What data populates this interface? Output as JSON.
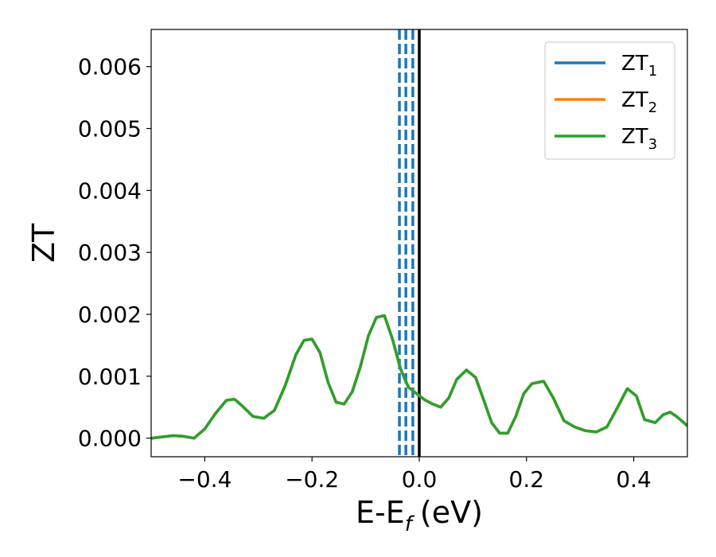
{
  "chart_data": {
    "type": "line",
    "xlabel": "E-E",
    "xlabel_sub": "f",
    "xlabel_unit": "(eV)",
    "ylabel": "ZT",
    "xlim": [
      -0.5,
      0.5
    ],
    "ylim": [
      -0.0003,
      0.0066
    ],
    "xticks": [
      -0.4,
      -0.2,
      0.0,
      0.2,
      0.4
    ],
    "xtick_labels": [
      "−0.4",
      "−0.2",
      "0.0",
      "0.2",
      "0.4"
    ],
    "yticks": [
      0.0,
      0.001,
      0.002,
      0.003,
      0.004,
      0.005,
      0.006
    ],
    "ytick_labels": [
      "0.000",
      "0.001",
      "0.002",
      "0.003",
      "0.004",
      "0.005",
      "0.006"
    ],
    "grid": false,
    "legend_position": "top-right",
    "series": [
      {
        "name": "ZT",
        "name_sub": "1",
        "color": "#1f77b4"
      },
      {
        "name": "ZT",
        "name_sub": "2",
        "color": "#ff7f0e"
      },
      {
        "name": "ZT",
        "name_sub": "3",
        "color": "#2ca02c",
        "x": [
          -0.5,
          -0.48,
          -0.46,
          -0.44,
          -0.42,
          -0.4,
          -0.38,
          -0.36,
          -0.345,
          -0.33,
          -0.31,
          -0.29,
          -0.27,
          -0.25,
          -0.23,
          -0.215,
          -0.2,
          -0.185,
          -0.17,
          -0.155,
          -0.14,
          -0.125,
          -0.11,
          -0.095,
          -0.08,
          -0.065,
          -0.05,
          -0.035,
          -0.02,
          -0.005,
          0.01,
          0.025,
          0.04,
          0.055,
          0.07,
          0.088,
          0.105,
          0.12,
          0.135,
          0.15,
          0.165,
          0.18,
          0.195,
          0.21,
          0.232,
          0.25,
          0.27,
          0.29,
          0.31,
          0.33,
          0.35,
          0.37,
          0.388,
          0.405,
          0.42,
          0.44,
          0.455,
          0.468,
          0.48,
          0.5
        ],
        "y": [
          0.0,
          2e-05,
          4e-05,
          3e-05,
          0.0,
          0.00015,
          0.0004,
          0.00061,
          0.00063,
          0.00052,
          0.00035,
          0.00032,
          0.00045,
          0.00085,
          0.00135,
          0.00158,
          0.0016,
          0.00138,
          0.0009,
          0.00058,
          0.00055,
          0.00075,
          0.00115,
          0.00165,
          0.00195,
          0.00198,
          0.0016,
          0.00112,
          0.00082,
          0.00072,
          0.00062,
          0.00055,
          0.0005,
          0.00065,
          0.00095,
          0.0011,
          0.00098,
          0.00062,
          0.00025,
          8e-05,
          8e-05,
          0.00035,
          0.00072,
          0.00088,
          0.00092,
          0.00065,
          0.00028,
          0.00018,
          0.00012,
          0.0001,
          0.00018,
          0.0005,
          0.0008,
          0.00068,
          0.0003,
          0.00025,
          0.00038,
          0.00042,
          0.00035,
          0.0002
        ]
      }
    ],
    "vertical_lines": [
      {
        "x": -0.037,
        "style": "dashed",
        "color": "#1f77b4"
      },
      {
        "x": -0.025,
        "style": "dashed",
        "color": "#1f77b4"
      },
      {
        "x": -0.012,
        "style": "dashed",
        "color": "#1f77b4"
      },
      {
        "x": 0.0,
        "style": "solid",
        "color": "#000000"
      }
    ]
  }
}
